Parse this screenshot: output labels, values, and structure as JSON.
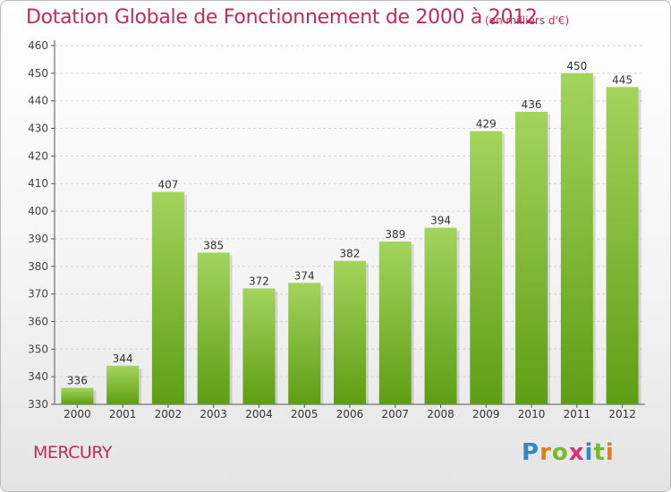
{
  "title": "Dotation Globale de Fonctionnement de 2000 à 2012",
  "subtitle": "(en milliers d'€)",
  "commune": "MERCURY",
  "brand": {
    "letters": [
      "P",
      "r",
      "o",
      "x",
      "i",
      "t",
      "i"
    ],
    "colors": [
      "#2f89c8",
      "#e97a16",
      "#7cb82f",
      "#d9307b",
      "#2f89c8",
      "#7cb82f",
      "#e97a16"
    ]
  },
  "colors": {
    "bar_top": "#a3d45c",
    "bar_bottom": "#5e9e14",
    "title": "#c02b5f"
  },
  "chart_data": {
    "type": "bar",
    "categories": [
      "2000",
      "2001",
      "2002",
      "2003",
      "2004",
      "2005",
      "2006",
      "2007",
      "2008",
      "2009",
      "2010",
      "2011",
      "2012"
    ],
    "values": [
      336,
      344,
      407,
      385,
      372,
      374,
      382,
      389,
      394,
      429,
      436,
      450,
      445
    ],
    "ylim": [
      330,
      460
    ],
    "yticks": [
      330,
      340,
      350,
      360,
      370,
      380,
      390,
      400,
      410,
      420,
      430,
      440,
      450,
      460
    ],
    "grid": "horizontal dashed",
    "legend": "none"
  }
}
